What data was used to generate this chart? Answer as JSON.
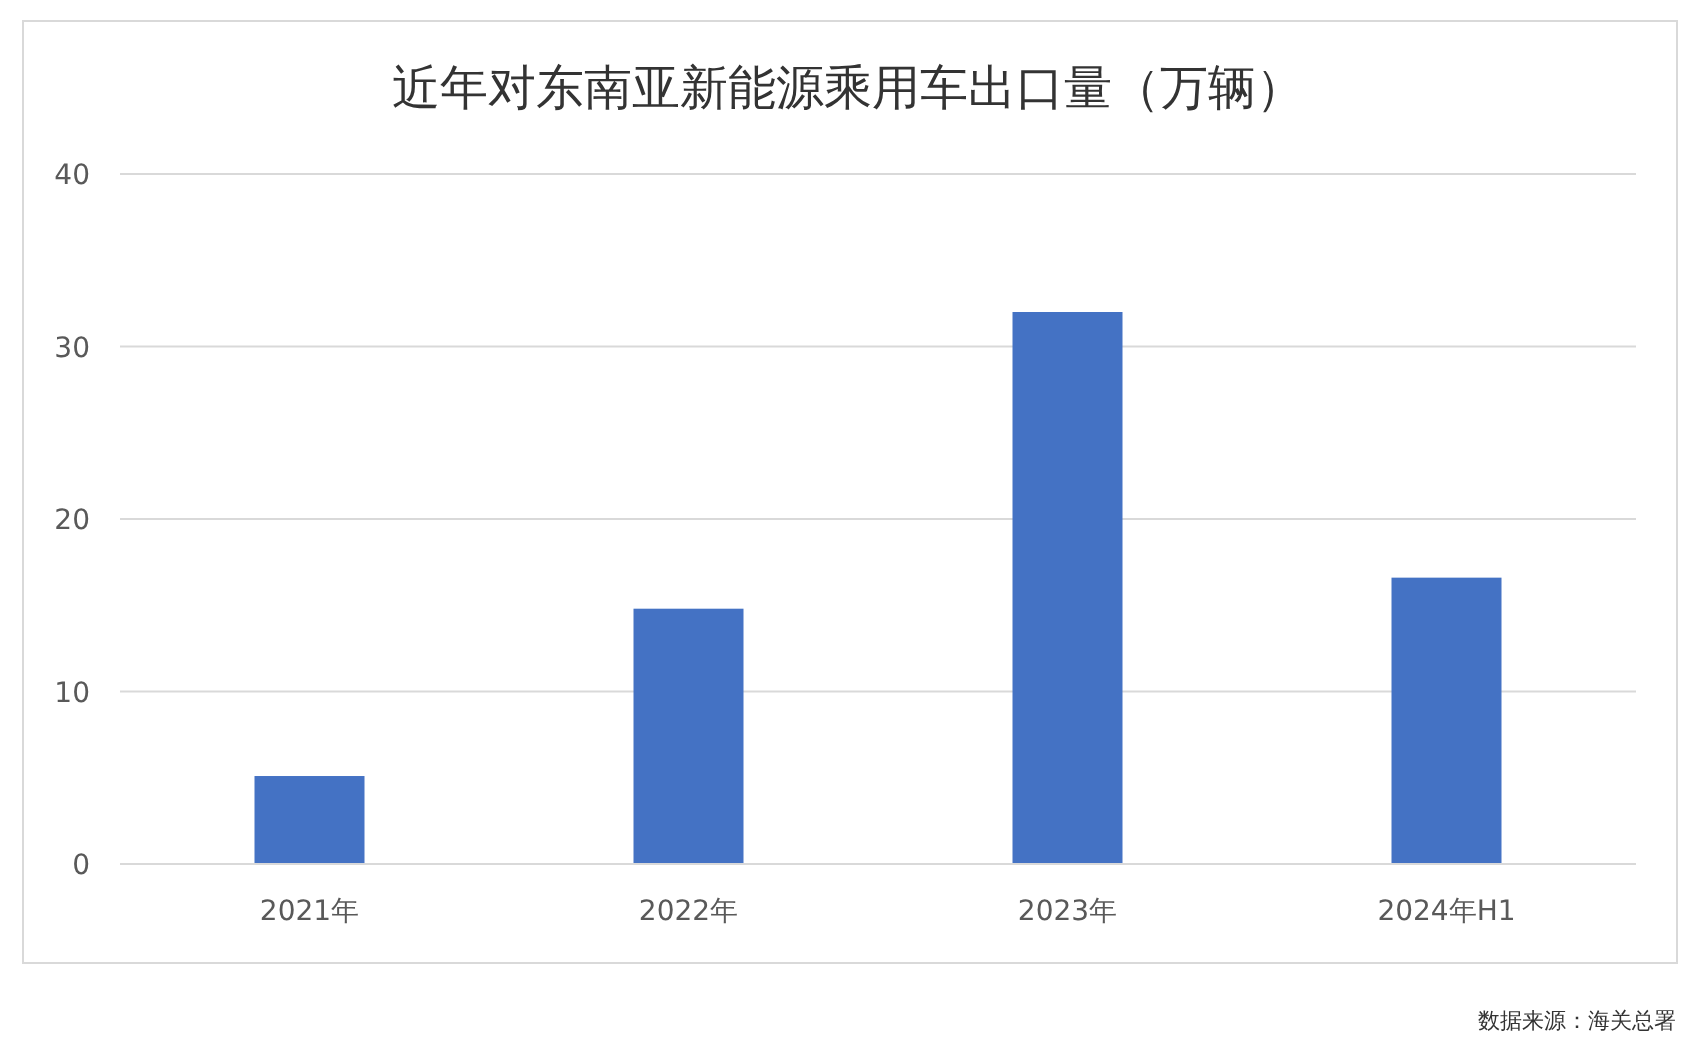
{
  "chart_data": {
    "type": "bar",
    "title": "近年对东南亚新能源乘用车出口量（万辆）",
    "categories": [
      "2021年",
      "2022年",
      "2023年",
      "2024年H1"
    ],
    "values": [
      5.1,
      14.8,
      32.0,
      16.6
    ],
    "color": "#4472c4",
    "ylim": [
      0,
      40
    ],
    "yticks": [
      0,
      10,
      20,
      30,
      40
    ],
    "grid": "y",
    "annotations": [
      "数据来源：海关总署"
    ]
  }
}
